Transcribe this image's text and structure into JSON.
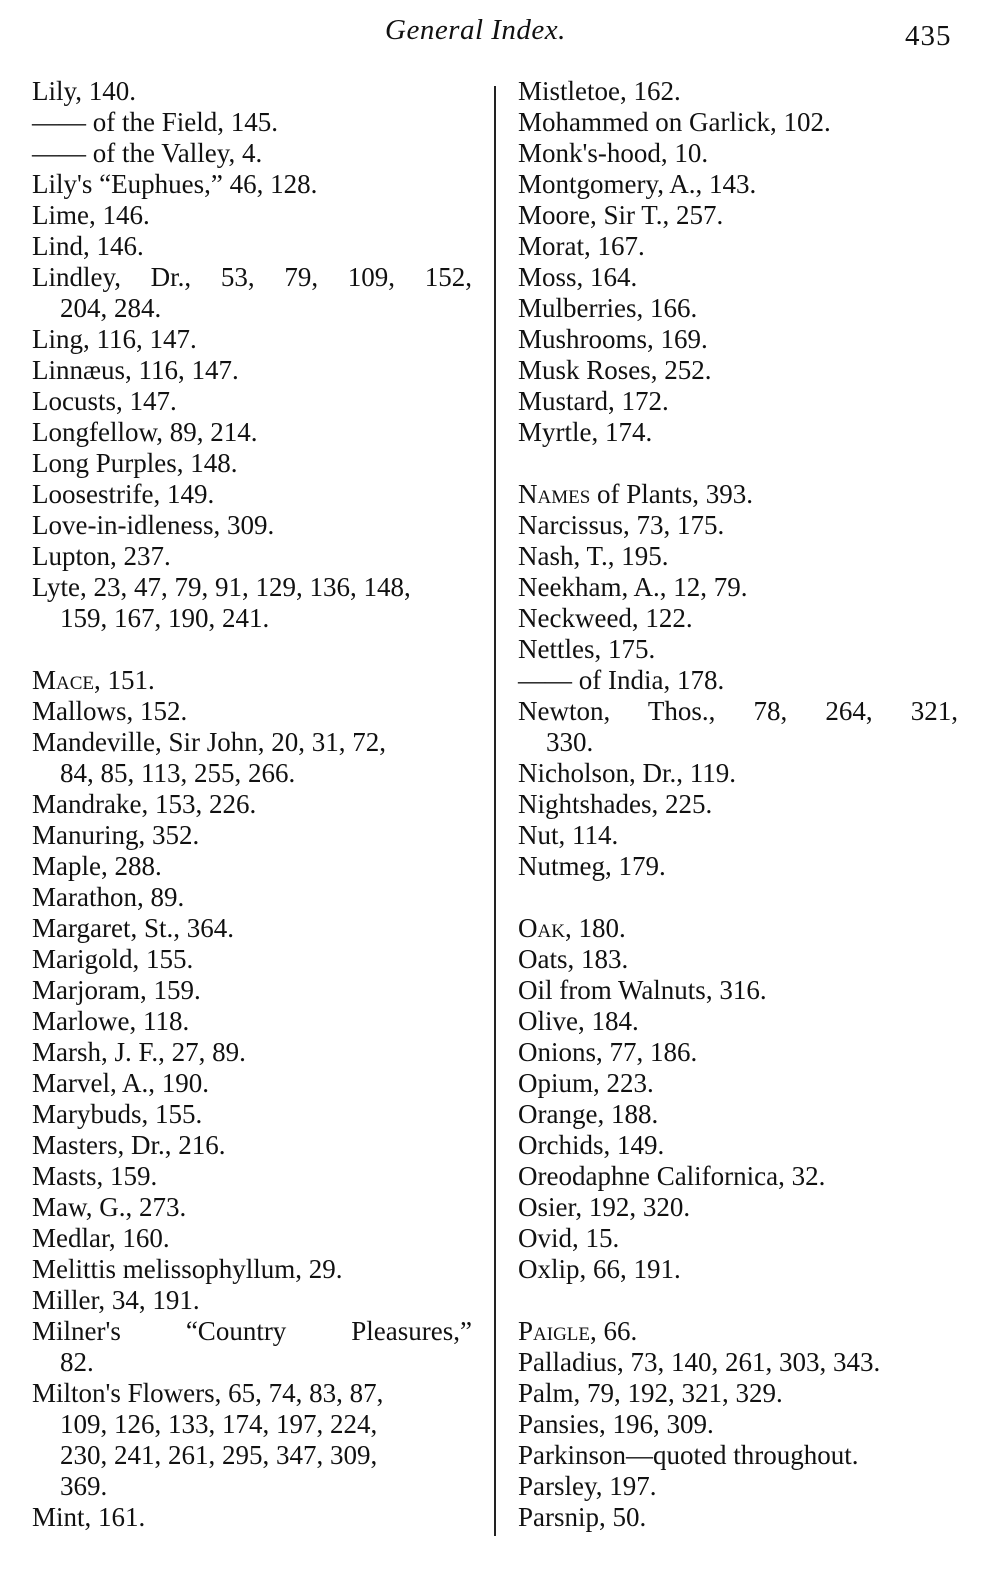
{
  "header": {
    "title": "General Index.",
    "page_number": "435"
  },
  "left_column": [
    {
      "text": "Lily, 140."
    },
    {
      "text": "—— of the Field, 145."
    },
    {
      "text": "—— of the Valley, 4."
    },
    {
      "text": "Lily's “Euphues,” 46, 128."
    },
    {
      "text": "Lime, 146."
    },
    {
      "text": "Lind, 146."
    },
    {
      "text": "Lindley, Dr., 53, 79, 109, 152,",
      "justify": true
    },
    {
      "text": "204, 284.",
      "cont": true
    },
    {
      "text": "Ling, 116, 147."
    },
    {
      "text": "Linnæus, 116, 147."
    },
    {
      "text": "Locusts, 147."
    },
    {
      "text": "Longfellow, 89, 214."
    },
    {
      "text": "Long Purples, 148."
    },
    {
      "text": "Loosestrife, 149."
    },
    {
      "text": "Love-in-idleness, 309."
    },
    {
      "text": "Lupton, 237."
    },
    {
      "text": "Lyte, 23, 47, 79, 91, 129, 136, 148,"
    },
    {
      "text": "159, 167, 190, 241.",
      "cont": true
    },
    {
      "gap": true
    },
    {
      "sc": "Mace",
      "text": ", 151."
    },
    {
      "text": "Mallows, 152."
    },
    {
      "text": "Mandeville, Sir John, 20, 31, 72,"
    },
    {
      "text": "84, 85, 113, 255, 266.",
      "cont": true
    },
    {
      "text": "Mandrake, 153, 226."
    },
    {
      "text": "Manuring, 352."
    },
    {
      "text": "Maple, 288."
    },
    {
      "text": "Marathon, 89."
    },
    {
      "text": "Margaret, St., 364."
    },
    {
      "text": "Marigold, 155."
    },
    {
      "text": "Marjoram, 159."
    },
    {
      "text": "Marlowe, 118."
    },
    {
      "text": "Marsh, J. F., 27, 89."
    },
    {
      "text": "Marvel, A., 190."
    },
    {
      "text": "Marybuds, 155."
    },
    {
      "text": "Masters, Dr., 216."
    },
    {
      "text": "Masts, 159."
    },
    {
      "text": "Maw, G., 273."
    },
    {
      "text": "Medlar, 160."
    },
    {
      "text": "Melittis melissophyllum, 29."
    },
    {
      "text": "Miller, 34, 191."
    },
    {
      "text": "Milner's “Country Pleasures,”",
      "justify": true
    },
    {
      "text": "82.",
      "cont": true
    },
    {
      "text": "Milton's Flowers, 65, 74, 83, 87,"
    },
    {
      "text": "109, 126, 133, 174, 197, 224,",
      "cont": true
    },
    {
      "text": "230, 241, 261, 295, 347, 309,",
      "cont": true
    },
    {
      "text": "369.",
      "cont": true
    },
    {
      "text": "Mint, 161."
    }
  ],
  "right_column": [
    {
      "text": "Mistletoe, 162."
    },
    {
      "text": "Mohammed on Garlick, 102."
    },
    {
      "text": "Monk's-hood, 10."
    },
    {
      "text": "Montgomery, A., 143."
    },
    {
      "text": "Moore, Sir T., 257."
    },
    {
      "text": "Morat, 167."
    },
    {
      "text": "Moss, 164."
    },
    {
      "text": "Mulberries, 166."
    },
    {
      "text": "Mushrooms, 169."
    },
    {
      "text": "Musk Roses, 252."
    },
    {
      "text": "Mustard, 172."
    },
    {
      "text": "Myrtle, 174."
    },
    {
      "gap": true
    },
    {
      "sc": "Names",
      "text": " of Plants, 393."
    },
    {
      "text": "Narcissus, 73, 175."
    },
    {
      "text": "Nash, T., 195."
    },
    {
      "text": "Neekham, A., 12, 79."
    },
    {
      "text": "Neckweed, 122."
    },
    {
      "text": "Nettles, 175."
    },
    {
      "text": "—— of India, 178."
    },
    {
      "text": "Newton, Thos., 78, 264, 321,",
      "justify": true
    },
    {
      "text": "330.",
      "cont": true
    },
    {
      "text": "Nicholson, Dr., 119."
    },
    {
      "text": "Nightshades, 225."
    },
    {
      "text": "Nut, 114."
    },
    {
      "text": "Nutmeg, 179."
    },
    {
      "gap": true
    },
    {
      "sc": "Oak",
      "text": ", 180."
    },
    {
      "text": "Oats, 183."
    },
    {
      "text": "Oil from Walnuts, 316."
    },
    {
      "text": "Olive, 184."
    },
    {
      "text": "Onions, 77, 186."
    },
    {
      "text": "Opium, 223."
    },
    {
      "text": "Orange, 188."
    },
    {
      "text": "Orchids, 149."
    },
    {
      "text": "Oreodaphne Californica, 32."
    },
    {
      "text": "Osier, 192, 320."
    },
    {
      "text": "Ovid, 15."
    },
    {
      "text": "Oxlip, 66, 191."
    },
    {
      "gap": true
    },
    {
      "sc": "Paigle",
      "text": ", 66."
    },
    {
      "text": "Palladius, 73, 140, 261, 303, 343."
    },
    {
      "text": "Palm, 79, 192, 321, 329."
    },
    {
      "text": "Pansies, 196, 309."
    },
    {
      "text": "Parkinson—quoted throughout."
    },
    {
      "text": "Parsley, 197."
    },
    {
      "text": "Parsnip, 50."
    }
  ]
}
